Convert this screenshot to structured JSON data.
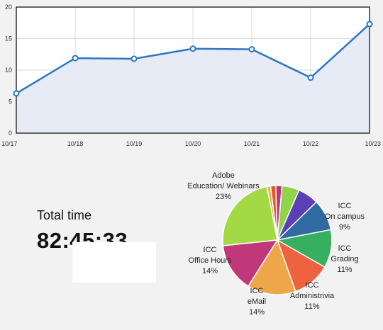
{
  "chart_data": [
    {
      "type": "area",
      "x": [
        "10/17",
        "10/18",
        "10/19",
        "10/20",
        "10/21",
        "10/22",
        "10/23"
      ],
      "values": [
        6.3,
        11.9,
        11.8,
        13.4,
        13.3,
        8.8,
        17.3
      ],
      "yticks": [
        0,
        5,
        10,
        15,
        20
      ],
      "ylim": [
        0,
        20
      ],
      "grid": true,
      "colors": {
        "line": "#2a77c4",
        "fill": "#e7ebf5",
        "marker_fill": "#ffffff"
      }
    },
    {
      "type": "pie",
      "slices": [
        {
          "label_lines": [
            "Adobe",
            "Education/ Webinars",
            "23%"
          ],
          "value": 23,
          "color": "#a3d944"
        },
        {
          "label_lines": [],
          "value": 1,
          "color": "#f0a848"
        },
        {
          "label_lines": [],
          "value": 1.5,
          "color": "#e05a2a"
        },
        {
          "label_lines": [],
          "value": 1.8,
          "color": "#c2357a"
        },
        {
          "label_lines": [],
          "value": 5,
          "color": "#8fd44a"
        },
        {
          "label_lines": [],
          "value": 6,
          "color": "#5a3fb6"
        },
        {
          "label_lines": [
            "ICC",
            "On campus",
            "9%"
          ],
          "value": 9,
          "color": "#2f6aa2"
        },
        {
          "label_lines": [
            "ICC",
            "Grading",
            "11%"
          ],
          "value": 11,
          "color": "#36b060"
        },
        {
          "label_lines": [
            "ICC",
            "Administrivia",
            "11%"
          ],
          "value": 11,
          "color": "#ee6240"
        },
        {
          "label_lines": [
            "ICC",
            "eMail",
            "14%"
          ],
          "value": 14,
          "color": "#eea64a"
        },
        {
          "label_lines": [
            "ICC",
            "Office Hours",
            "14%"
          ],
          "value": 14,
          "color": "#c1387a"
        }
      ]
    }
  ],
  "total": {
    "title": "Total time",
    "value": "82:45:33"
  }
}
